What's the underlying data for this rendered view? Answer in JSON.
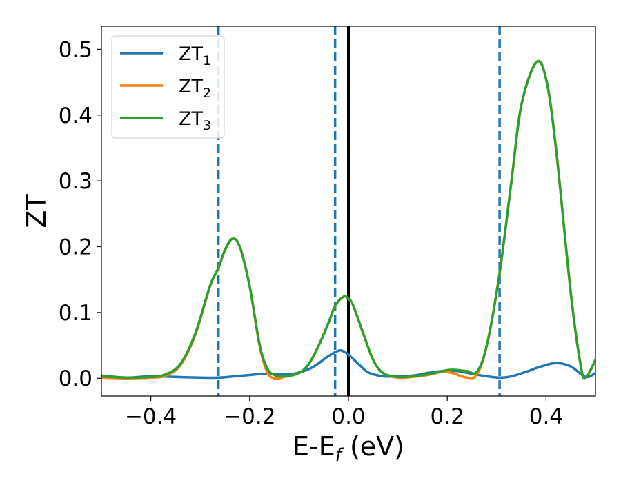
{
  "chart_data": {
    "type": "line",
    "xlabel_main": "E-E",
    "xlabel_sub": "f",
    "xlabel_unit": " (eV)",
    "ylabel": "ZT",
    "xlim": [
      -0.5,
      0.5
    ],
    "ylim": [
      -0.027,
      0.535
    ],
    "x_ticks": [
      -0.4,
      -0.2,
      0.0,
      0.2,
      0.4
    ],
    "x_tick_labels": [
      "−0.4",
      "−0.2",
      "0.0",
      "0.2",
      "0.4"
    ],
    "y_ticks": [
      0.0,
      0.1,
      0.2,
      0.3,
      0.4,
      0.5
    ],
    "y_tick_labels": [
      "0.0",
      "0.1",
      "0.2",
      "0.3",
      "0.4",
      "0.5"
    ],
    "grid": false,
    "legend_position": "top-left",
    "vertical_lines": [
      {
        "x": -0.263,
        "style": "dashed",
        "color": "#1f77b4"
      },
      {
        "x": -0.027,
        "style": "dashed",
        "color": "#1f77b4"
      },
      {
        "x": 0.0,
        "style": "solid",
        "color": "#000000"
      },
      {
        "x": 0.306,
        "style": "dashed",
        "color": "#1f77b4"
      }
    ],
    "series": [
      {
        "name": "ZT",
        "sub": "1",
        "color": "#1f77b4",
        "x": [
          -0.5,
          -0.45,
          -0.4,
          -0.35,
          -0.3,
          -0.263,
          -0.23,
          -0.2,
          -0.17,
          -0.14,
          -0.11,
          -0.08,
          -0.06,
          -0.04,
          -0.02,
          -0.01,
          0.0,
          0.02,
          0.04,
          0.07,
          0.1,
          0.13,
          0.16,
          0.19,
          0.22,
          0.25,
          0.28,
          0.306,
          0.33,
          0.36,
          0.39,
          0.42,
          0.45,
          0.48,
          0.5
        ],
        "y": [
          0.004,
          0.001,
          0.003,
          0.002,
          0.001,
          0.001,
          0.003,
          0.005,
          0.007,
          0.006,
          0.007,
          0.014,
          0.023,
          0.034,
          0.042,
          0.041,
          0.036,
          0.022,
          0.009,
          0.003,
          0.003,
          0.004,
          0.008,
          0.011,
          0.011,
          0.007,
          0.003,
          0.001,
          0.003,
          0.01,
          0.018,
          0.023,
          0.018,
          0.002,
          0.008
        ]
      },
      {
        "name": "ZT",
        "sub": "2",
        "color": "#ff7f0e",
        "x": [
          -0.5,
          -0.45,
          -0.4,
          -0.37,
          -0.34,
          -0.31,
          -0.28,
          -0.263,
          -0.25,
          -0.235,
          -0.22,
          -0.2,
          -0.18,
          -0.165,
          -0.15,
          -0.13,
          -0.1,
          -0.08,
          -0.06,
          -0.04,
          -0.027,
          -0.01,
          0.0,
          0.01,
          0.03,
          0.05,
          0.07,
          0.1,
          0.13,
          0.16,
          0.19,
          0.21,
          0.24,
          0.26,
          0.28,
          0.306,
          0.33,
          0.35,
          0.38,
          0.4,
          0.42,
          0.45,
          0.47,
          0.48,
          0.5
        ],
        "y": [
          0.001,
          0.0,
          0.001,
          0.004,
          0.02,
          0.066,
          0.14,
          0.168,
          0.195,
          0.212,
          0.2,
          0.14,
          0.05,
          0.01,
          0.0,
          0.002,
          0.008,
          0.022,
          0.05,
          0.085,
          0.11,
          0.124,
          0.121,
          0.11,
          0.068,
          0.028,
          0.008,
          0.001,
          0.002,
          0.005,
          0.01,
          0.008,
          0.001,
          0.006,
          0.05,
          0.16,
          0.3,
          0.415,
          0.48,
          0.455,
          0.35,
          0.13,
          0.02,
          0.001,
          0.028
        ]
      },
      {
        "name": "ZT",
        "sub": "3",
        "color": "#2ca02c",
        "x": [
          -0.5,
          -0.45,
          -0.4,
          -0.37,
          -0.34,
          -0.31,
          -0.28,
          -0.263,
          -0.25,
          -0.235,
          -0.22,
          -0.2,
          -0.18,
          -0.165,
          -0.15,
          -0.13,
          -0.1,
          -0.08,
          -0.06,
          -0.04,
          -0.027,
          -0.01,
          0.0,
          0.01,
          0.03,
          0.05,
          0.07,
          0.1,
          0.13,
          0.16,
          0.19,
          0.21,
          0.24,
          0.26,
          0.28,
          0.306,
          0.33,
          0.35,
          0.38,
          0.4,
          0.42,
          0.45,
          0.47,
          0.48,
          0.5
        ],
        "y": [
          0.003,
          0.001,
          0.002,
          0.006,
          0.022,
          0.068,
          0.141,
          0.168,
          0.195,
          0.212,
          0.2,
          0.14,
          0.052,
          0.016,
          0.005,
          0.003,
          0.008,
          0.022,
          0.05,
          0.085,
          0.11,
          0.124,
          0.121,
          0.11,
          0.068,
          0.028,
          0.008,
          0.002,
          0.003,
          0.006,
          0.011,
          0.013,
          0.011,
          0.01,
          0.05,
          0.16,
          0.3,
          0.415,
          0.48,
          0.455,
          0.35,
          0.13,
          0.02,
          0.001,
          0.028
        ]
      }
    ]
  }
}
